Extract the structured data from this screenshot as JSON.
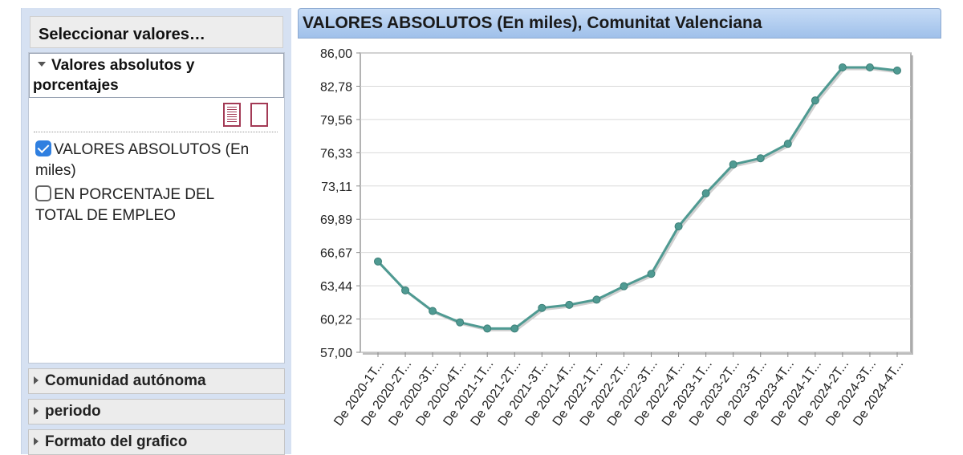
{
  "sidebar": {
    "header": "Seleccionar valores…",
    "open_section": {
      "title_line1": "Valores absolutos y",
      "title_line2": "porcentajes",
      "icons": [
        "list-view-icon",
        "blank-page-icon"
      ],
      "options": [
        {
          "label_line1": "VALORES ABSOLUTOS (En",
          "label_line2": "miles)",
          "checked": true
        },
        {
          "label_line1": "EN PORCENTAJE DEL",
          "label_line2": "TOTAL DE EMPLEO",
          "checked": false
        }
      ]
    },
    "collapsed_sections": [
      "Comunidad autónoma",
      "periodo",
      "Formato del grafico"
    ]
  },
  "chart_data": {
    "type": "line",
    "title": "VALORES ABSOLUTOS (En miles), Comunitat Valenciana",
    "categories": [
      "De 2020-1T...",
      "De 2020-2T...",
      "De 2020-3T...",
      "De 2020-4T...",
      "De 2021-1T...",
      "De 2021-2T...",
      "De 2021-3T...",
      "De 2021-4T...",
      "De 2022-1T...",
      "De 2022-2T...",
      "De 2022-3T...",
      "De 2022-4T...",
      "De 2023-1T...",
      "De 2023-2T...",
      "De 2023-3T...",
      "De 2023-4T...",
      "De 2024-1T...",
      "De 2024-2T...",
      "De 2024-3T...",
      "De 2024-4T..."
    ],
    "values": [
      65.8,
      63.0,
      61.0,
      59.9,
      59.3,
      59.3,
      61.3,
      61.6,
      62.1,
      63.4,
      64.6,
      69.2,
      72.4,
      75.2,
      75.8,
      77.2,
      81.4,
      84.6,
      84.6,
      84.3
    ],
    "ylim": [
      57.0,
      86.0
    ],
    "yticks": [
      "57,00",
      "60,22",
      "63,44",
      "66,67",
      "69,89",
      "73,11",
      "76,33",
      "79,56",
      "82,78",
      "86,00"
    ],
    "grid": true,
    "colors": {
      "line": "#4f9a92",
      "point": "#4f9a92"
    }
  }
}
